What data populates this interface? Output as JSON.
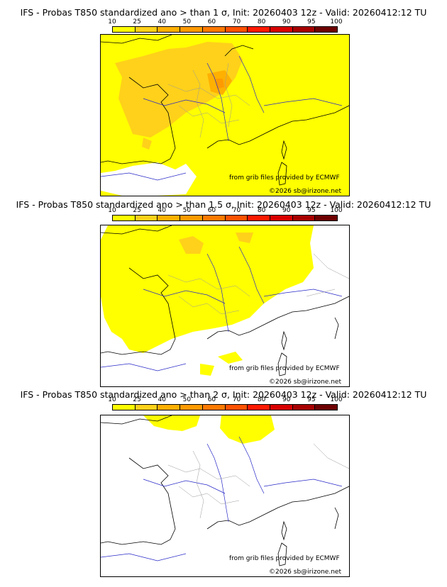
{
  "legend": {
    "labels": [
      "10",
      "25",
      "40",
      "50",
      "60",
      "70",
      "80",
      "90",
      "95",
      "100"
    ],
    "colors": [
      "#ffff00",
      "#ffd11a",
      "#ffb000",
      "#ff9a00",
      "#ff7a00",
      "#ff5200",
      "#ff1a00",
      "#d90000",
      "#a80000",
      "#6e0000"
    ]
  },
  "panels": [
    {
      "title": "IFS - Probas T850  standardized ano > than 1 σ, Init: 20260403 12z - Valid: 20260412:12 TU",
      "source": "from grib files provided by ECMWF",
      "copyright": "©2026 sb@irizone.net"
    },
    {
      "title": "IFS - Probas T850  standardized ano > than 1.5 σ, Init: 20260403 12z - Valid: 20260412:12 TU",
      "source": "from grib files provided by ECMWF",
      "copyright": "©2026 sb@irizone.net"
    },
    {
      "title": "IFS - Probas T850  standardized ano > than 2 σ, Init: 20260403 12z - Valid: 20260412:12 TU",
      "source": "from grib files provided by ECMWF",
      "copyright": "©2026 sb@irizone.net"
    }
  ],
  "colors": {
    "coast": "#000000",
    "river": "#2828c8",
    "borders": "#999999",
    "land_fill": "#ffffff"
  }
}
